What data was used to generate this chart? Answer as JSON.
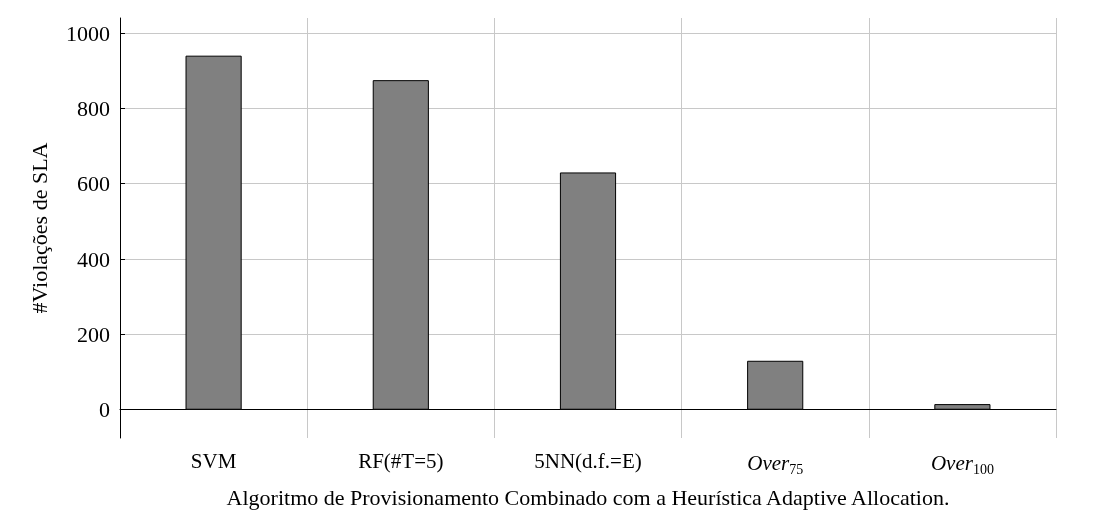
{
  "chart_data": {
    "type": "bar",
    "xlabel": "Algoritmo de Provisionamento Combinado com a Heurística Adaptive Allocation.",
    "ylabel": "#Violações de SLA",
    "categories": [
      "SVM",
      "RF(#T=5)",
      "5NN(d.f.=E)",
      "Over$_{75}$",
      "Over$_{100}$"
    ],
    "values": [
      940,
      875,
      630,
      130,
      15
    ],
    "color": "#808080",
    "ylim": [
      -75,
      1040
    ],
    "yticks": [
      0,
      200,
      400,
      600,
      800,
      1000
    ],
    "grid": true
  }
}
